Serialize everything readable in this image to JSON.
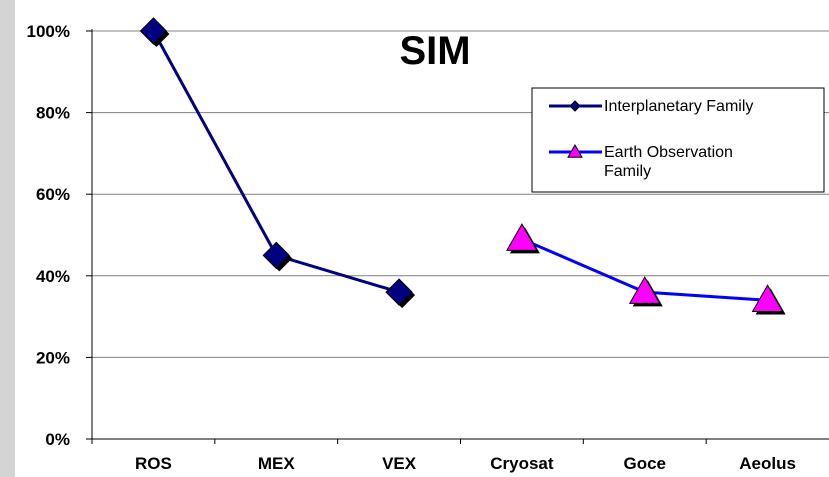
{
  "chart_data": {
    "type": "line",
    "title": "SIM",
    "categories": [
      "ROS",
      "MEX",
      "VEX",
      "Cryosat",
      "Goce",
      "Aeolus"
    ],
    "y_ticks": [
      "0%",
      "20%",
      "40%",
      "60%",
      "80%",
      "100%"
    ],
    "ylim": [
      0,
      100
    ],
    "grid": true,
    "legend_position": "top-right",
    "series": [
      {
        "name": "Interplanetary Family",
        "legend_lines": [
          "Interplanetary Family"
        ],
        "color": "#000080",
        "marker": "diamond",
        "values": [
          100,
          45,
          36,
          null,
          null,
          null
        ]
      },
      {
        "name": "Earth Observation Family",
        "legend_lines": [
          "Earth Observation",
          "Family"
        ],
        "color": "#0000ff",
        "marker": "triangle",
        "marker_color": "#ff00ff",
        "values": [
          null,
          null,
          null,
          49,
          36,
          34
        ]
      }
    ]
  }
}
